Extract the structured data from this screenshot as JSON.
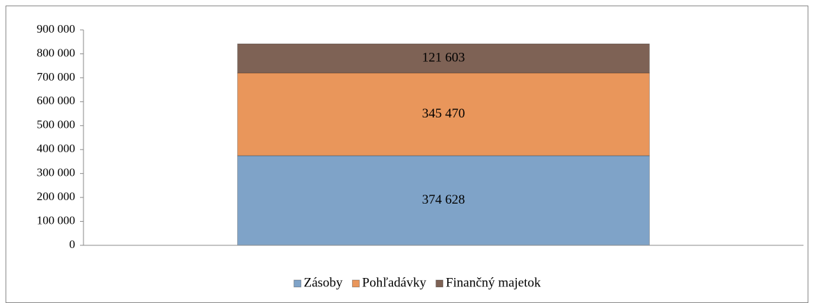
{
  "chart_data": {
    "type": "stacked_bar",
    "categories": [
      null
    ],
    "series": [
      {
        "name": "Zásoby",
        "color": "#7fa3c8",
        "values": [
          374628
        ],
        "value_labels": [
          "374 628"
        ]
      },
      {
        "name": "Pohľadávky",
        "color": "#e9965b",
        "values": [
          345470
        ],
        "value_labels": [
          "345 470"
        ]
      },
      {
        "name": "Finančný majetok",
        "color": "#7e6255",
        "values": [
          121603
        ],
        "value_labels": [
          "121 603"
        ]
      }
    ],
    "ylim": [
      0,
      900000
    ],
    "yticks": [
      0,
      {
        "value": 100000,
        "label": "100 000"
      },
      {
        "value": 200000,
        "label": "200 000"
      },
      {
        "value": 300000,
        "label": "300 000"
      },
      {
        "value": 400000,
        "label": "400 000"
      },
      {
        "value": 500000,
        "label": "500 000"
      },
      {
        "value": 600000,
        "label": "600 000"
      },
      {
        "value": 700000,
        "label": "700 000"
      },
      {
        "value": 800000,
        "label": "800 000"
      },
      {
        "value": 900000,
        "label": "900 000"
      }
    ],
    "legend": "bottom"
  }
}
